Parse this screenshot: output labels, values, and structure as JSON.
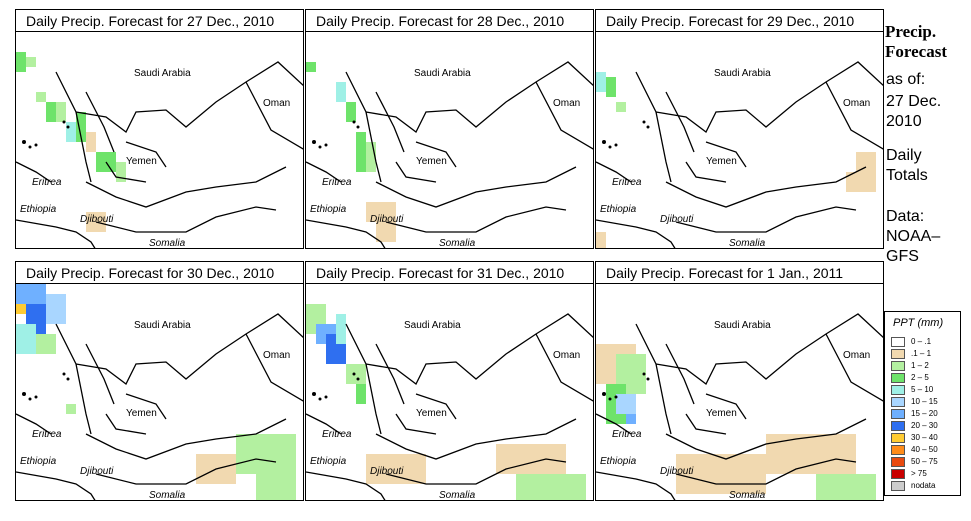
{
  "panels": [
    {
      "title": "Daily Precip. Forecast for  27 Dec., 2010"
    },
    {
      "title": "Daily Precip. Forecast for  28 Dec., 2010"
    },
    {
      "title": "Daily Precip. Forecast for  29 Dec., 2010"
    },
    {
      "title": "Daily Precip. Forecast for  30 Dec., 2010"
    },
    {
      "title": "Daily Precip. Forecast for  31 Dec., 2010"
    },
    {
      "title": "Daily Precip. Forecast for  1 Jan., 2011"
    }
  ],
  "map_labels": {
    "saudi": "Saudi Arabia",
    "oman": "Oman",
    "yemen": "Yemen",
    "eritrea": "Eritrea",
    "ethiopia": "Ethiopia",
    "djibouti": "Djibouti",
    "somalia": "Somalia"
  },
  "sidebar": {
    "title_line1": "Precip.",
    "title_line2": "Forecast",
    "asof_line1": "as of:",
    "asof_line2": "27 Dec.",
    "asof_line3": "2010",
    "daily_line1": "Daily",
    "daily_line2": "Totals",
    "data_line1": "Data:",
    "data_line2": "NOAA–",
    "data_line3": "GFS"
  },
  "legend": {
    "title": "PPT (mm)",
    "items": [
      {
        "label": "0 – .1",
        "color": "#ffffff"
      },
      {
        "label": ".1 – 1",
        "color": "#f1d9b0"
      },
      {
        "label": "1 – 2",
        "color": "#b3f0a0"
      },
      {
        "label": "2 – 5",
        "color": "#6ee36a"
      },
      {
        "label": "5 – 10",
        "color": "#9ff0e6"
      },
      {
        "label": "10 – 15",
        "color": "#a9d6ff"
      },
      {
        "label": "15 – 20",
        "color": "#6fb0ff"
      },
      {
        "label": "20 – 30",
        "color": "#2f6ff0"
      },
      {
        "label": "30 – 40",
        "color": "#ffcc33"
      },
      {
        "label": "40 – 50",
        "color": "#ff8c1a"
      },
      {
        "label": "50 – 75",
        "color": "#e84a10"
      },
      {
        "label": "> 75",
        "color": "#c80000"
      },
      {
        "label": "nodata",
        "color": "#cccccc"
      }
    ]
  }
}
